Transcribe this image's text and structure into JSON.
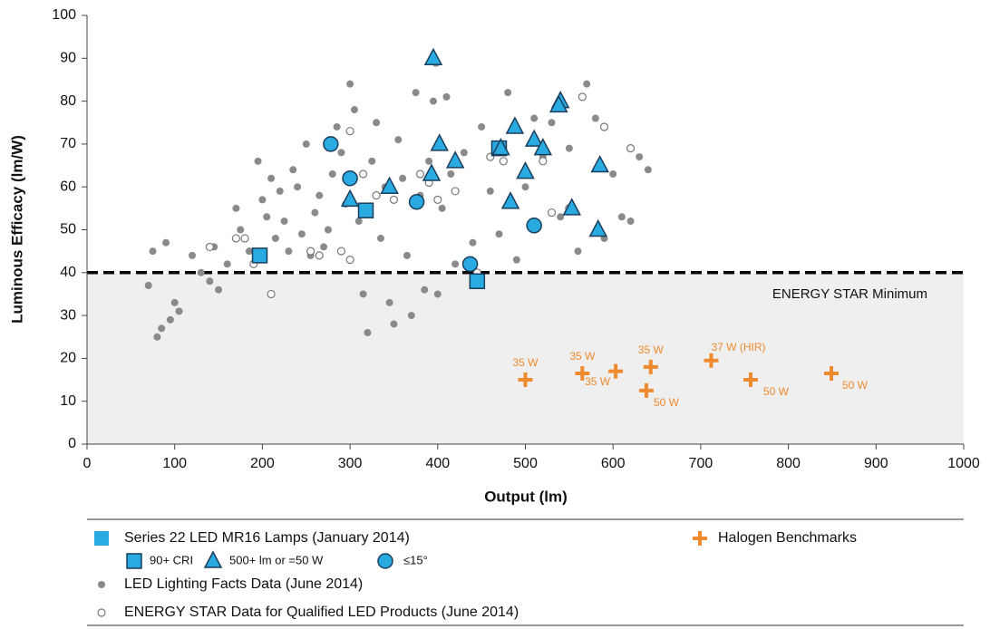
{
  "chart_data": {
    "type": "scatter",
    "x_label": "Output (lm)",
    "y_label": "Luminous Efficacy (lm/W)",
    "xlim": [
      0,
      1000
    ],
    "ylim": [
      0,
      100
    ],
    "xticks": [
      0,
      100,
      200,
      300,
      400,
      500,
      600,
      700,
      800,
      900,
      1000
    ],
    "yticks": [
      0,
      10,
      20,
      30,
      40,
      50,
      60,
      70,
      80,
      90,
      100
    ],
    "threshold": {
      "value": 40,
      "label": "ENERGY STAR Minimum"
    },
    "legend_group": "Series 22 LED MR16 Lamps (January 2014)",
    "series": [
      {
        "name": "LED Lighting Facts Data (June 2014)",
        "color": "#8a8a8a",
        "marker": "dot",
        "x": [
          70,
          75,
          80,
          85,
          90,
          95,
          100,
          105,
          120,
          130,
          140,
          145,
          150,
          160,
          170,
          175,
          185,
          195,
          200,
          205,
          210,
          215,
          220,
          225,
          230,
          235,
          240,
          245,
          250,
          255,
          260,
          265,
          270,
          275,
          280,
          285,
          290,
          295,
          300,
          305,
          310,
          315,
          320,
          325,
          330,
          335,
          340,
          345,
          350,
          355,
          360,
          365,
          370,
          375,
          380,
          385,
          390,
          395,
          400,
          405,
          410,
          415,
          420,
          430,
          440,
          450,
          460,
          470,
          480,
          490,
          500,
          510,
          520,
          530,
          540,
          550,
          560,
          570,
          580,
          590,
          600,
          610,
          620,
          630,
          640
        ],
        "y": [
          37,
          45,
          25,
          27,
          47,
          29,
          33,
          31,
          44,
          40,
          38,
          46,
          36,
          42,
          55,
          50,
          45,
          66,
          57,
          53,
          62,
          48,
          59,
          52,
          45,
          64,
          60,
          49,
          70,
          44,
          54,
          58,
          46,
          50,
          63,
          74,
          68,
          56,
          84,
          78,
          52,
          35,
          26,
          66,
          75,
          48,
          60,
          33,
          28,
          71,
          62,
          44,
          30,
          82,
          58,
          36,
          66,
          80,
          35,
          55,
          81,
          63,
          42,
          68,
          47,
          74,
          59,
          49,
          82,
          43,
          60,
          76,
          67,
          75,
          53,
          69,
          45,
          84,
          76,
          48,
          63,
          53,
          52,
          67,
          64
        ]
      },
      {
        "name": "ENERGY STAR Data for Qualified LED Products (June 2014)",
        "color": "#777777",
        "marker": "open",
        "x": [
          140,
          170,
          180,
          190,
          210,
          255,
          265,
          290,
          300,
          300,
          315,
          330,
          350,
          380,
          390,
          398,
          400,
          420,
          445,
          460,
          475,
          520,
          530,
          550,
          565,
          590,
          620
        ],
        "y": [
          46,
          48,
          48,
          42,
          35,
          45,
          44,
          45,
          43,
          73,
          63,
          58,
          57,
          63,
          61,
          89,
          57,
          59,
          40,
          67,
          66,
          66,
          54,
          55,
          81,
          74,
          69
        ]
      },
      {
        "name": "90+ CRI",
        "color": "#29abe2",
        "marker": "square",
        "x": [
          197,
          318,
          445,
          470
        ],
        "y": [
          44,
          54.5,
          38,
          69
        ]
      },
      {
        "name": "500+ lm or =50 W",
        "color": "#29abe2",
        "marker": "triangle",
        "x": [
          395,
          402,
          420,
          393,
          300,
          345,
          488,
          483,
          472,
          500,
          510,
          520,
          540,
          538,
          553,
          585,
          583
        ],
        "y": [
          90,
          70,
          66,
          63,
          57,
          60,
          74,
          56.5,
          69,
          63.5,
          71,
          69,
          80,
          79,
          55,
          65,
          50
        ]
      },
      {
        "name": "≤15°",
        "color": "#29abe2",
        "marker": "circle",
        "x": [
          278,
          300,
          376,
          437,
          510
        ],
        "y": [
          70,
          62,
          56.5,
          42,
          51
        ]
      },
      {
        "name": "Halogen Benchmarks",
        "color": "#ef8a2e",
        "marker": "plus",
        "x": [
          500,
          565,
          603,
          643,
          638,
          712,
          757,
          849
        ],
        "y": [
          15,
          16.5,
          17,
          18,
          12.5,
          19.5,
          15,
          16.5
        ],
        "point_labels": [
          "35 W",
          "35 W",
          "35 W",
          "35 W",
          "50 W",
          "37 W (HIR)",
          "50 W",
          "50 W"
        ]
      }
    ]
  }
}
